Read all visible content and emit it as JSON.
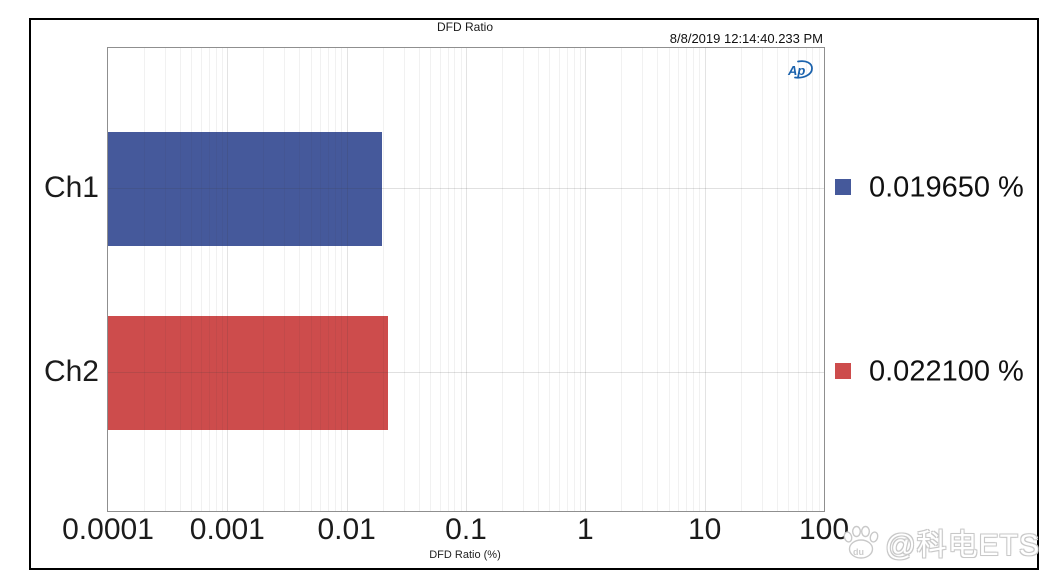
{
  "window": {
    "timestamp": "8/8/2019 12:14:40.233 PM",
    "logo": "Ap"
  },
  "watermark": {
    "icon": "baidu-paw-icon",
    "icon_label": "du",
    "text": "@科电ETS"
  },
  "chart_data": {
    "type": "bar",
    "orientation": "horizontal",
    "title": "DFD Ratio",
    "xlabel": "DFD Ratio (%)",
    "x_scale": "log",
    "xlim": [
      0.0001,
      100
    ],
    "x_tick_labels": [
      "0.0001",
      "0.001",
      "0.01",
      "0.1",
      "1",
      "10",
      "100"
    ],
    "categories": [
      "Ch1",
      "Ch2"
    ],
    "values": [
      0.01965,
      0.0221
    ],
    "value_labels": [
      "0.019650 %",
      "0.022100 %"
    ],
    "colors": [
      "#45599B",
      "#CD4C4C"
    ],
    "grid": true,
    "legend_position": "right",
    "accent_logo_color": "#1c63ad"
  }
}
